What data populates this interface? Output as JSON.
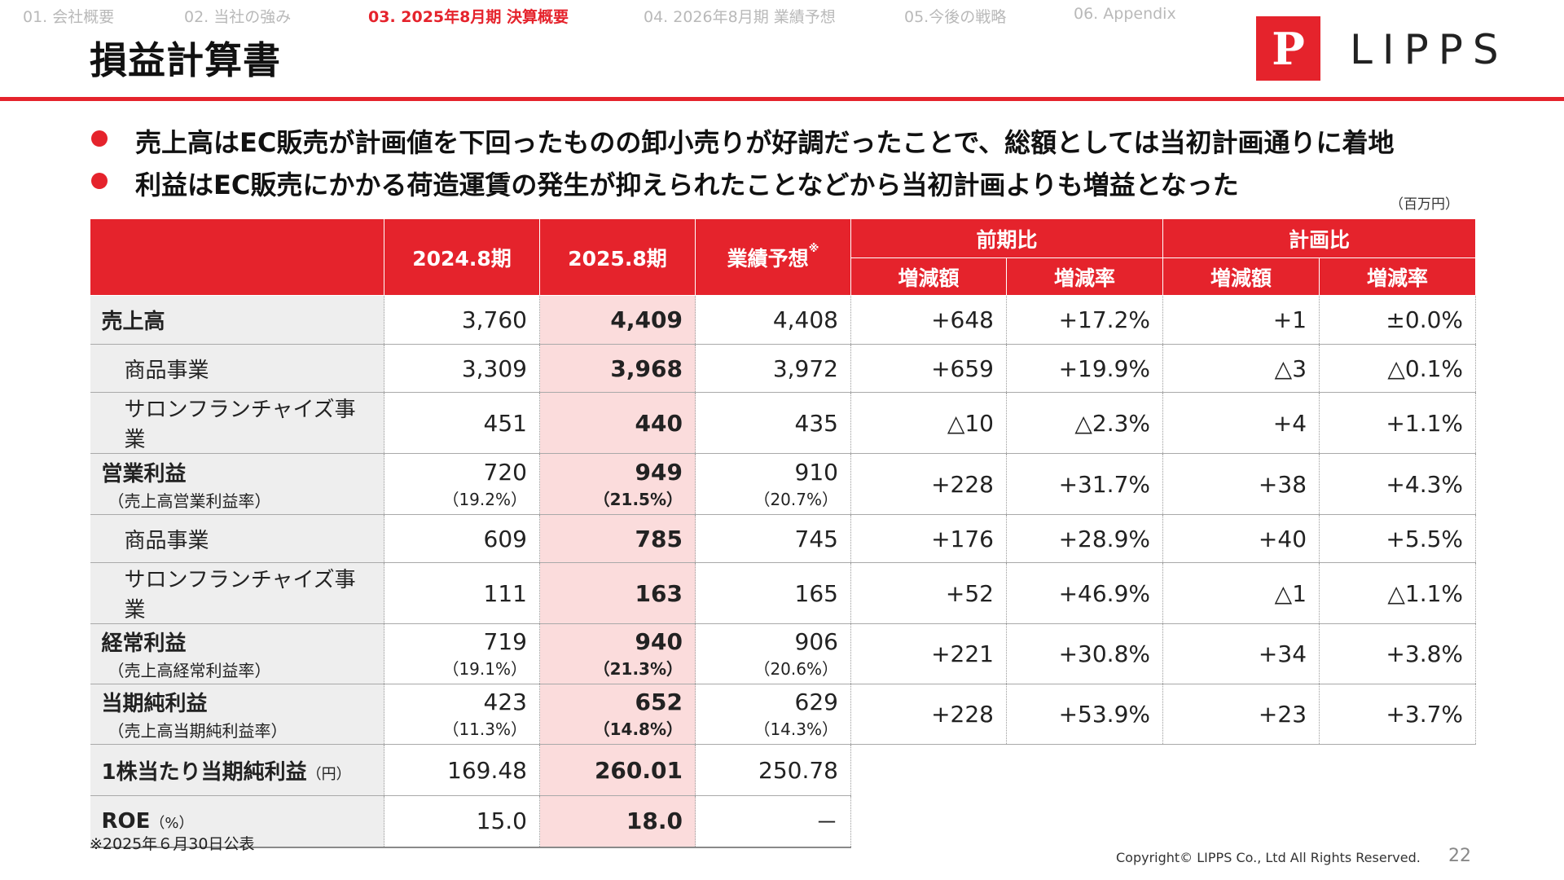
{
  "nav": {
    "items": [
      "01. 会社概要",
      "02. 当社の強み",
      "03. 2025年8月期 決算概要",
      "04. 2026年8月期 業績予想",
      "05.今後の戦略",
      "06. Appendix"
    ]
  },
  "page": {
    "title": "損益計算書",
    "logo_mark": "P",
    "logo_text": "LIPPS"
  },
  "bullets": [
    "売上高はEC販売が計画値を下回ったものの卸小売りが好調だったことで、総額としては当初計画通りに着地",
    "利益はEC販売にかかる荷造運賃の発生が抑えられたことなどから当初計画よりも増益となった"
  ],
  "unit_note": "（百万円）",
  "table": {
    "headers": {
      "fy2024": "2024.8期",
      "fy2025": "2025.8期",
      "forecast": "業績予想",
      "forecast_mark": "※",
      "yoy": "前期比",
      "vs_plan": "計画比",
      "change_amount": "増減額",
      "change_rate": "増減率"
    },
    "rows": {
      "sales": {
        "label": "売上高",
        "fy2024": "3,760",
        "fy2025": "4,409",
        "forecast": "4,408",
        "yoy_amt": "+648",
        "yoy_rate": "+17.2%",
        "plan_amt": "+1",
        "plan_rate": "±0.0%"
      },
      "sales_products": {
        "label": "商品事業",
        "fy2024": "3,309",
        "fy2025": "3,968",
        "forecast": "3,972",
        "yoy_amt": "+659",
        "yoy_rate": "+19.9%",
        "plan_amt": "△3",
        "plan_rate": "△0.1%"
      },
      "sales_salon": {
        "label": "サロンフランチャイズ事業",
        "fy2024": "451",
        "fy2025": "440",
        "forecast": "435",
        "yoy_amt": "△10",
        "yoy_rate": "△2.3%",
        "plan_amt": "+4",
        "plan_rate": "+1.1%"
      },
      "op_income": {
        "label": "営業利益",
        "sub": "（売上高営業利益率）",
        "fy2024": "720",
        "fy2024_sub": "（19.2%）",
        "fy2025": "949",
        "fy2025_sub": "（21.5%）",
        "forecast": "910",
        "forecast_sub": "（20.7%）",
        "yoy_amt": "+228",
        "yoy_rate": "+31.7%",
        "plan_amt": "+38",
        "plan_rate": "+4.3%"
      },
      "op_products": {
        "label": "商品事業",
        "fy2024": "609",
        "fy2025": "785",
        "forecast": "745",
        "yoy_amt": "+176",
        "yoy_rate": "+28.9%",
        "plan_amt": "+40",
        "plan_rate": "+5.5%"
      },
      "op_salon": {
        "label": "サロンフランチャイズ事業",
        "fy2024": "111",
        "fy2025": "163",
        "forecast": "165",
        "yoy_amt": "+52",
        "yoy_rate": "+46.9%",
        "plan_amt": "△1",
        "plan_rate": "△1.1%"
      },
      "ordinary": {
        "label": "経常利益",
        "sub": "（売上高経常利益率）",
        "fy2024": "719",
        "fy2024_sub": "（19.1%）",
        "fy2025": "940",
        "fy2025_sub": "（21.3%）",
        "forecast": "906",
        "forecast_sub": "（20.6%）",
        "yoy_amt": "+221",
        "yoy_rate": "+30.8%",
        "plan_amt": "+34",
        "plan_rate": "+3.8%"
      },
      "net": {
        "label": "当期純利益",
        "sub": "（売上高当期純利益率）",
        "fy2024": "423",
        "fy2024_sub": "（11.3%）",
        "fy2025": "652",
        "fy2025_sub": "（14.8%）",
        "forecast": "629",
        "forecast_sub": "（14.3%）",
        "yoy_amt": "+228",
        "yoy_rate": "+53.9%",
        "plan_amt": "+23",
        "plan_rate": "+3.7%"
      },
      "eps": {
        "label": "1株当たり当期純利益",
        "unit": "（円）",
        "fy2024": "169.48",
        "fy2025": "260.01",
        "forecast": "250.78"
      },
      "roe": {
        "label": "ROE",
        "unit": "（%）",
        "fy2024": "15.0",
        "fy2025": "18.0",
        "forecast": "－"
      }
    }
  },
  "footnote": "※2025年６月30日公表",
  "footer": {
    "copyright": "Copyright© LIPPS Co., Ltd All Rights Reserved.",
    "page_number": "22"
  }
}
